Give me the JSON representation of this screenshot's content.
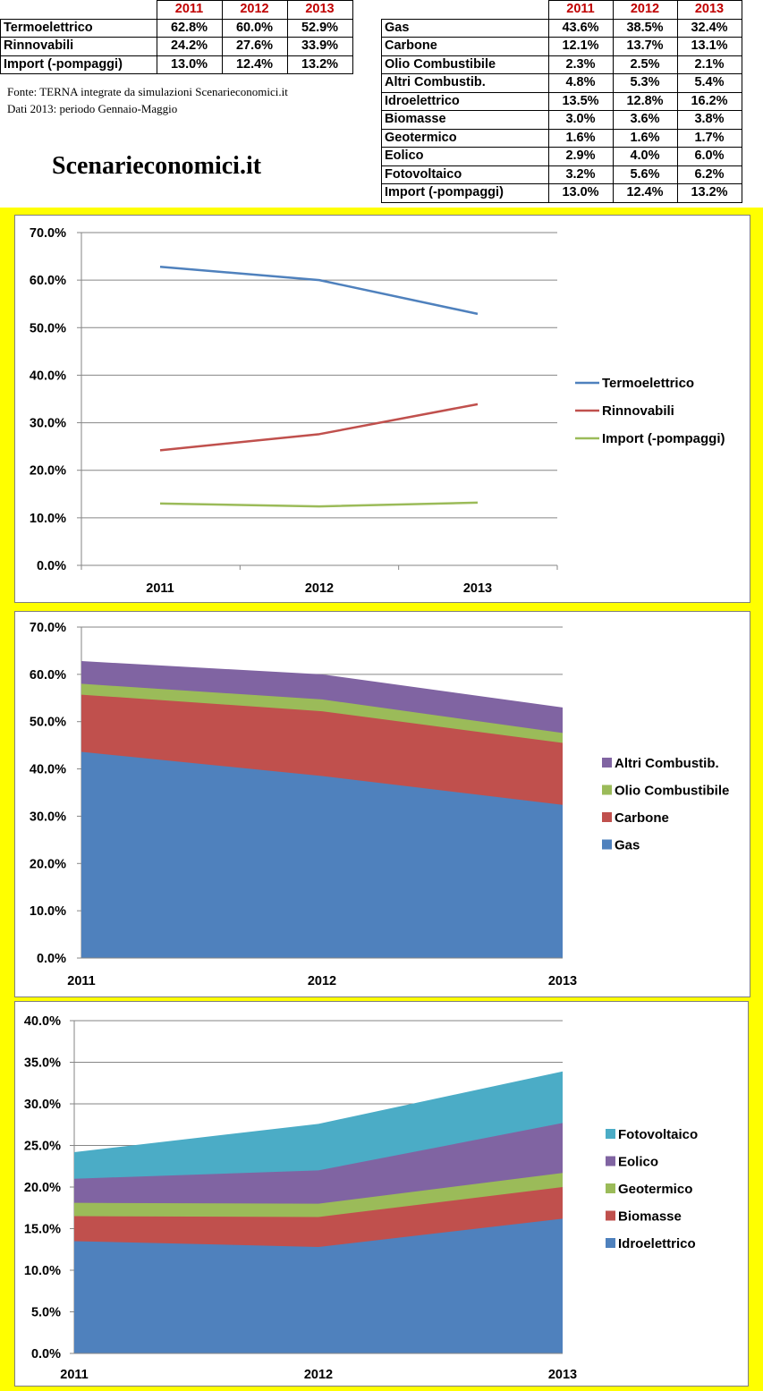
{
  "table_left": {
    "years": [
      "2011",
      "2012",
      "2013"
    ],
    "rows": [
      {
        "label": "Termoelettrico",
        "values": [
          "62.8%",
          "60.0%",
          "52.9%"
        ]
      },
      {
        "label": "Rinnovabili",
        "values": [
          "24.2%",
          "27.6%",
          "33.9%"
        ]
      },
      {
        "label": "Import (-pompaggi)",
        "values": [
          "13.0%",
          "12.4%",
          "13.2%"
        ]
      }
    ]
  },
  "table_right": {
    "years": [
      "2011",
      "2012",
      "2013"
    ],
    "rows": [
      {
        "label": "Gas",
        "values": [
          "43.6%",
          "38.5%",
          "32.4%"
        ]
      },
      {
        "label": "Carbone",
        "values": [
          "12.1%",
          "13.7%",
          "13.1%"
        ]
      },
      {
        "label": "Olio Combustibile",
        "values": [
          "2.3%",
          "2.5%",
          "2.1%"
        ]
      },
      {
        "label": "Altri Combustib.",
        "values": [
          "4.8%",
          "5.3%",
          "5.4%"
        ]
      },
      {
        "label": "Idroelettrico",
        "values": [
          "13.5%",
          "12.8%",
          "16.2%"
        ]
      },
      {
        "label": "Biomasse",
        "values": [
          "3.0%",
          "3.6%",
          "3.8%"
        ]
      },
      {
        "label": "Geotermico",
        "values": [
          "1.6%",
          "1.6%",
          "1.7%"
        ]
      },
      {
        "label": "Eolico",
        "values": [
          "2.9%",
          "4.0%",
          "6.0%"
        ]
      },
      {
        "label": "Fotovoltaico",
        "values": [
          "3.2%",
          "5.6%",
          "6.2%"
        ]
      },
      {
        "label": "Import (-pompaggi)",
        "values": [
          "13.0%",
          "12.4%",
          "13.2%"
        ]
      }
    ]
  },
  "source_line1": "Fonte: TERNA integrate da simulazioni Scenarieconomici.it",
  "source_line2": "Dati 2013: periodo Gennaio-Maggio",
  "brand": "Scenarieconomici.it",
  "chart_data": [
    {
      "type": "line",
      "categories": [
        "2011",
        "2012",
        "2013"
      ],
      "ylim": [
        0,
        70
      ],
      "ystep": 10,
      "y_ticks": [
        "0.0%",
        "10.0%",
        "20.0%",
        "30.0%",
        "40.0%",
        "50.0%",
        "60.0%",
        "70.0%"
      ],
      "grid": true,
      "legend": "right",
      "series": [
        {
          "name": "Termoelettrico",
          "values": [
            62.8,
            60.0,
            52.9
          ],
          "color": "#4f81bd"
        },
        {
          "name": "Rinnovabili",
          "values": [
            24.2,
            27.6,
            33.9
          ],
          "color": "#c0504d"
        },
        {
          "name": "Import (-pompaggi)",
          "values": [
            13.0,
            12.4,
            13.2
          ],
          "color": "#9bbb59"
        }
      ]
    },
    {
      "type": "area",
      "stacked": true,
      "categories": [
        "2011",
        "2012",
        "2013"
      ],
      "ylim": [
        0,
        70
      ],
      "ystep": 10,
      "y_ticks": [
        "0.0%",
        "10.0%",
        "20.0%",
        "30.0%",
        "40.0%",
        "50.0%",
        "60.0%",
        "70.0%"
      ],
      "grid": true,
      "legend": "right",
      "series": [
        {
          "name": "Gas",
          "values": [
            43.6,
            38.5,
            32.4
          ],
          "color": "#4f81bd"
        },
        {
          "name": "Carbone",
          "values": [
            12.1,
            13.7,
            13.1
          ],
          "color": "#c0504d"
        },
        {
          "name": "Olio Combustibile",
          "values": [
            2.3,
            2.5,
            2.1
          ],
          "color": "#9bbb59"
        },
        {
          "name": "Altri Combustib.",
          "values": [
            4.8,
            5.3,
            5.4
          ],
          "color": "#8064a2"
        }
      ]
    },
    {
      "type": "area",
      "stacked": true,
      "categories": [
        "2011",
        "2012",
        "2013"
      ],
      "ylim": [
        0,
        40
      ],
      "ystep": 5,
      "y_ticks": [
        "0.0%",
        "5.0%",
        "10.0%",
        "15.0%",
        "20.0%",
        "25.0%",
        "30.0%",
        "35.0%",
        "40.0%"
      ],
      "grid": true,
      "legend": "right",
      "series": [
        {
          "name": "Idroelettrico",
          "values": [
            13.5,
            12.8,
            16.2
          ],
          "color": "#4f81bd"
        },
        {
          "name": "Biomasse",
          "values": [
            3.0,
            3.6,
            3.8
          ],
          "color": "#c0504d"
        },
        {
          "name": "Geotermico",
          "values": [
            1.6,
            1.6,
            1.7
          ],
          "color": "#9bbb59"
        },
        {
          "name": "Eolico",
          "values": [
            2.9,
            4.0,
            6.0
          ],
          "color": "#8064a2"
        },
        {
          "name": "Fotovoltaico",
          "values": [
            3.2,
            5.6,
            6.2
          ],
          "color": "#4bacc6"
        }
      ]
    }
  ]
}
